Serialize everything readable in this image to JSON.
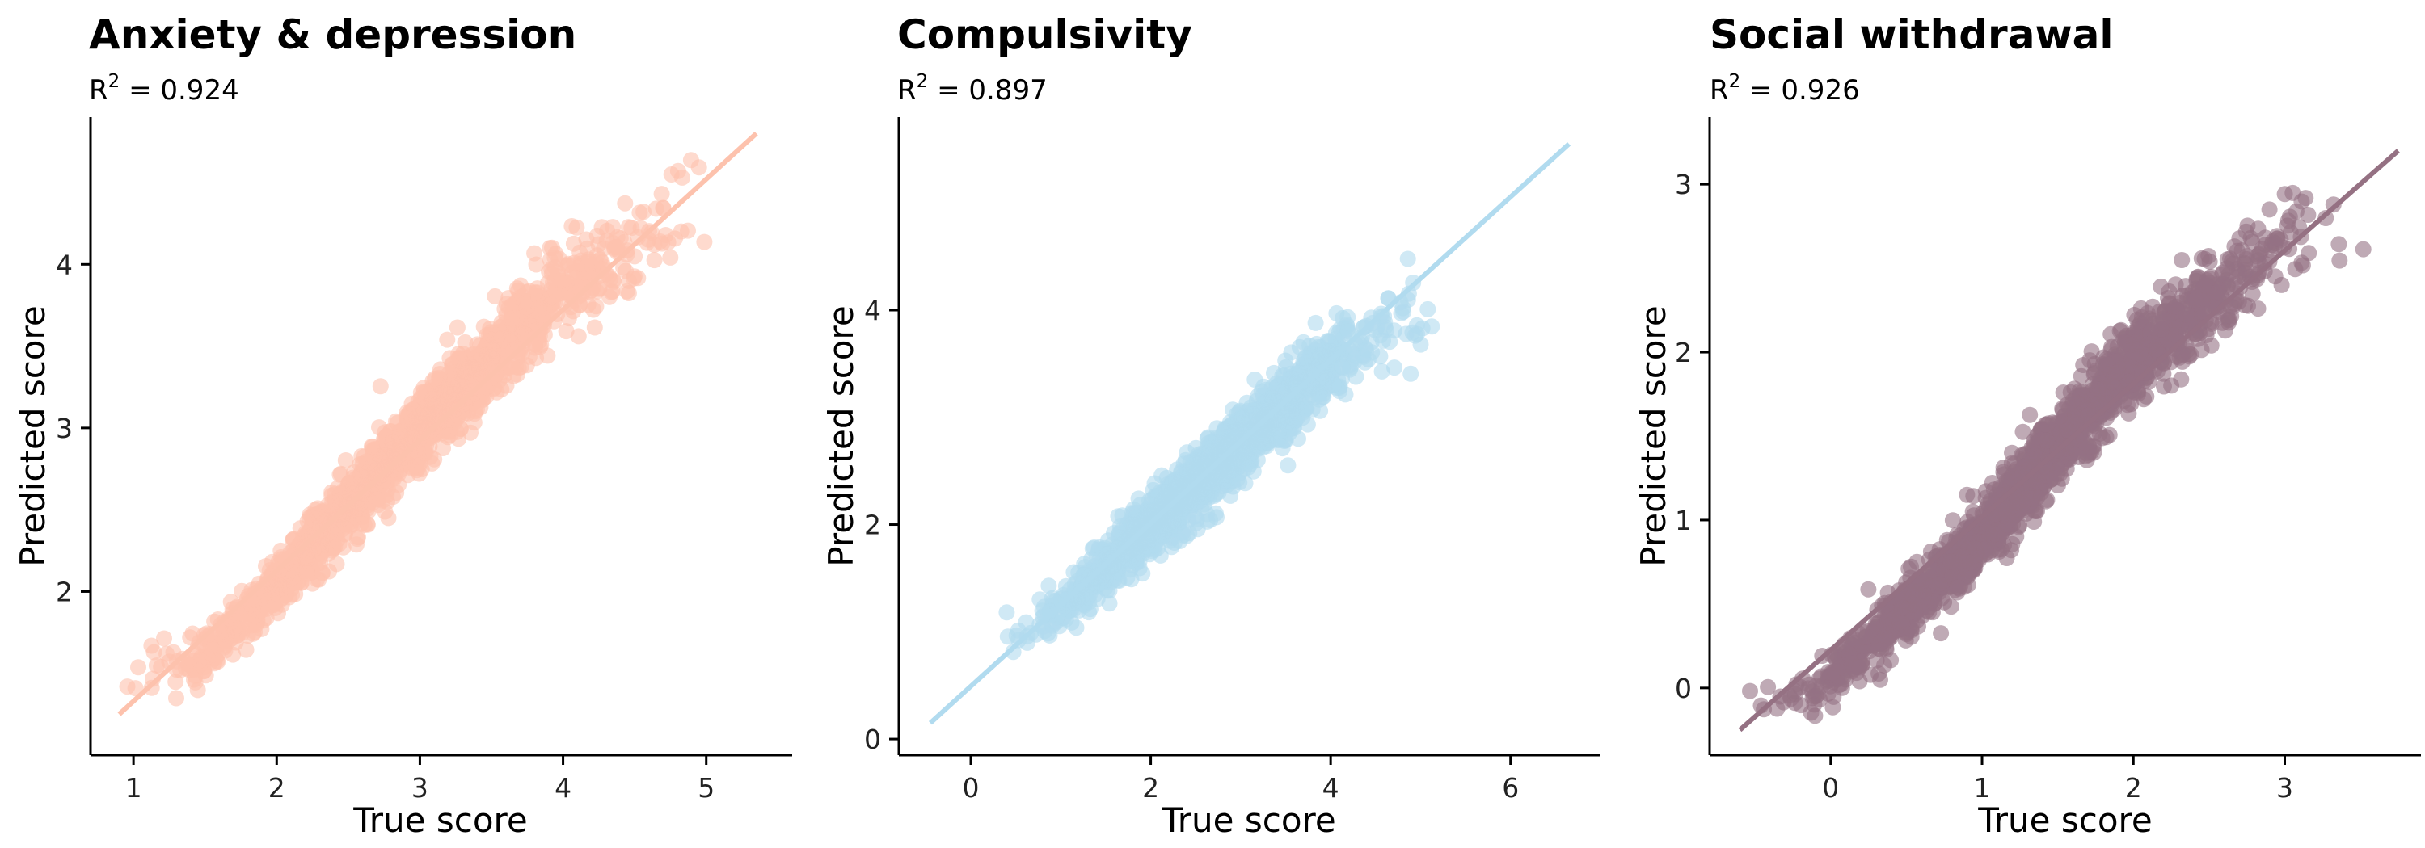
{
  "chart_data": [
    {
      "type": "scatter",
      "title": "Anxiety & depression",
      "subtitle_base": "R",
      "subtitle_sup": "2",
      "subtitle_rest": " = 0.924",
      "xlabel": "True score",
      "ylabel": "Predicted score",
      "xlim": [
        0.7,
        5.6
      ],
      "ylim": [
        1.0,
        4.9
      ],
      "xticks": [
        1,
        2,
        3,
        4,
        5
      ],
      "yticks": [
        2,
        3,
        4
      ],
      "color": "#fdc2ad",
      "fit_line": [
        [
          0.9,
          1.25
        ],
        [
          5.35,
          4.8
        ]
      ],
      "n_points": 1600,
      "x_center": [
        0.9,
        5.3
      ],
      "trend": [
        [
          0.9,
          1.45
        ],
        [
          1.5,
          1.6
        ],
        [
          2.0,
          2.05
        ],
        [
          3.0,
          3.0
        ],
        [
          4.0,
          3.85
        ],
        [
          5.3,
          4.55
        ]
      ],
      "noise": 0.12,
      "seed": 11,
      "grid": false,
      "legend": "none"
    },
    {
      "type": "scatter",
      "title": "Compulsivity",
      "subtitle_base": "R",
      "subtitle_sup": "2",
      "subtitle_rest": " = 0.897",
      "xlabel": "True score",
      "ylabel": "Predicted score",
      "xlim": [
        -0.8,
        7.0
      ],
      "ylim": [
        -0.15,
        5.8
      ],
      "xticks": [
        0,
        2,
        4,
        6
      ],
      "yticks": [
        0,
        2,
        4
      ],
      "color": "#b1dbef",
      "fit_line": [
        [
          -0.45,
          0.15
        ],
        [
          6.65,
          5.55
        ]
      ],
      "n_points": 1600,
      "x_center": [
        0.3,
        5.5
      ],
      "trend": [
        [
          -0.45,
          0.8
        ],
        [
          0.3,
          0.85
        ],
        [
          1.0,
          1.2
        ],
        [
          2.0,
          2.0
        ],
        [
          3.0,
          2.75
        ],
        [
          4.0,
          3.5
        ],
        [
          5.0,
          4.0
        ],
        [
          6.6,
          4.85
        ]
      ],
      "noise": 0.16,
      "seed": 23,
      "grid": false,
      "legend": "none"
    },
    {
      "type": "scatter",
      "title": "Social withdrawal",
      "subtitle_base": "R",
      "subtitle_sup": "2",
      "subtitle_rest": " = 0.926",
      "xlabel": "True score",
      "ylabel": "Predicted score",
      "xlim": [
        -0.8,
        3.9
      ],
      "ylim": [
        -0.4,
        3.4
      ],
      "xticks": [
        0,
        1,
        2,
        3
      ],
      "yticks": [
        0,
        1,
        2,
        3
      ],
      "color": "#957183",
      "fit_line": [
        [
          -0.6,
          -0.25
        ],
        [
          3.75,
          3.2
        ]
      ],
      "n_points": 1900,
      "x_center": [
        -0.55,
        3.7
      ],
      "trend": [
        [
          -0.6,
          -0.05
        ],
        [
          -0.2,
          -0.02
        ],
        [
          0.0,
          0.05
        ],
        [
          1.0,
          0.9
        ],
        [
          2.0,
          1.95
        ],
        [
          3.0,
          2.65
        ],
        [
          3.7,
          2.9
        ]
      ],
      "noise": 0.11,
      "seed": 37,
      "grid": false,
      "legend": "none"
    }
  ]
}
